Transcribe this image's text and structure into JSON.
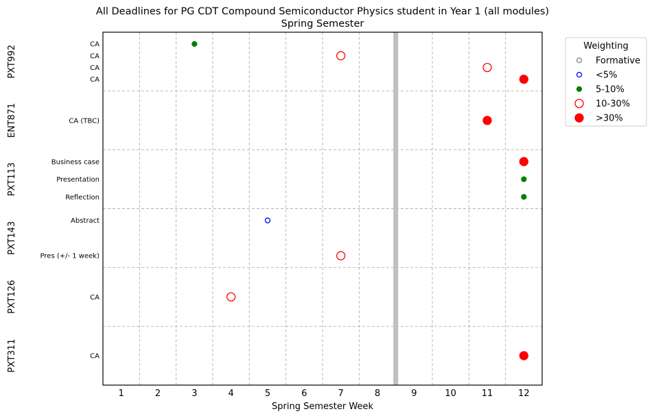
{
  "chart_data": {
    "type": "scatter",
    "title": "All Deadlines for PG CDT Compound Semiconductor Physics student in Year 1 (all modules)",
    "subtitle": "Spring Semester",
    "xlabel": "Spring Semester Week",
    "ylabel": "",
    "xlim": [
      0.5,
      12.5
    ],
    "x_ticks": [
      1,
      2,
      3,
      4,
      5,
      6,
      7,
      8,
      9,
      10,
      11,
      12
    ],
    "grid": true,
    "reading_week_marker": 8.5,
    "legend": {
      "title": "Weighting",
      "placement": "outside-top-right",
      "entries": [
        {
          "label": "Formative",
          "style": "formative"
        },
        {
          "label": "<5%",
          "style": "lt5"
        },
        {
          "label": "5-10%",
          "style": "w5_10"
        },
        {
          "label": "10-30%",
          "style": "w10_30"
        },
        {
          "label": ">30%",
          "style": "gt30"
        }
      ]
    },
    "styles": {
      "formative": {
        "color": "#808080",
        "filled": false
      },
      "lt5": {
        "color": "#0000ff",
        "filled": false
      },
      "w5_10": {
        "color": "#008000",
        "filled": true
      },
      "w10_30": {
        "color": "#ff0000",
        "filled": false
      },
      "gt30": {
        "color": "#ff0000",
        "filled": true
      }
    },
    "modules": [
      {
        "name": "PXT992",
        "assessments": [
          {
            "label": "CA",
            "week": 3,
            "weighting": "w5_10"
          },
          {
            "label": "CA",
            "week": 7,
            "weighting": "w10_30"
          },
          {
            "label": "CA",
            "week": 11,
            "weighting": "w10_30"
          },
          {
            "label": "CA",
            "week": 12,
            "weighting": "gt30"
          }
        ]
      },
      {
        "name": "ENT871",
        "assessments": [
          {
            "label": "CA (TBC)",
            "week": 11,
            "weighting": "gt30"
          }
        ]
      },
      {
        "name": "PXT113",
        "assessments": [
          {
            "label": "Business case",
            "week": 12,
            "weighting": "gt30"
          },
          {
            "label": "Presentation",
            "week": 12,
            "weighting": "w5_10"
          },
          {
            "label": "Reflection",
            "week": 12,
            "weighting": "w5_10"
          }
        ]
      },
      {
        "name": "PXT143",
        "assessments": [
          {
            "label": "Abstract",
            "week": 5,
            "weighting": "lt5"
          },
          {
            "label": "Pres (+/- 1 week)",
            "week": 7,
            "weighting": "w10_30"
          }
        ]
      },
      {
        "name": "PXT126",
        "assessments": [
          {
            "label": "CA",
            "week": 4,
            "weighting": "w10_30"
          }
        ]
      },
      {
        "name": "PXT311",
        "assessments": [
          {
            "label": "CA",
            "week": 12,
            "weighting": "gt30"
          }
        ]
      }
    ]
  }
}
